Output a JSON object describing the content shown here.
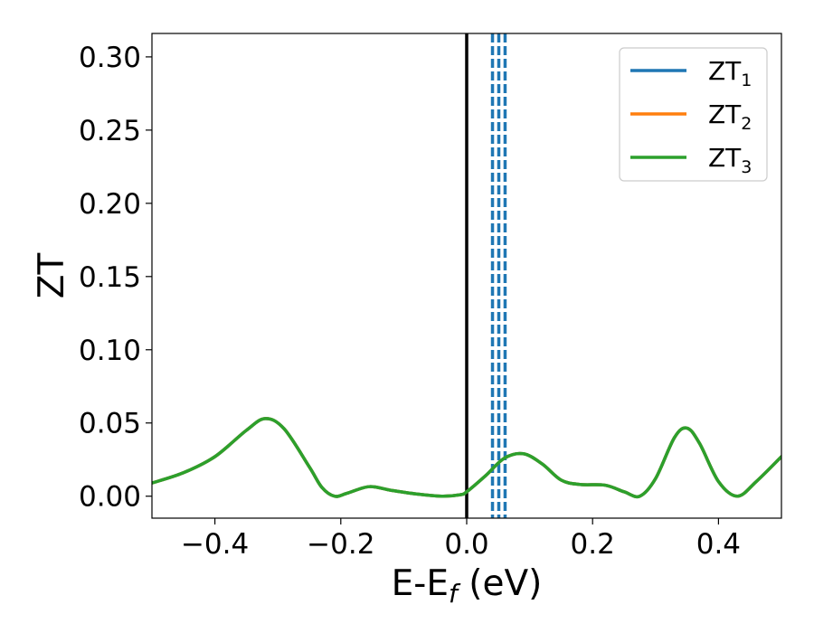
{
  "chart_data": {
    "type": "line",
    "xlabel": "E-E",
    "xlabel_sub": "f",
    "xlabel_unit": " (eV)",
    "ylabel": "ZT",
    "xlim": [
      -0.5,
      0.5
    ],
    "ylim": [
      -0.015,
      0.316
    ],
    "xticks": [
      -0.4,
      -0.2,
      0.0,
      0.2,
      0.4
    ],
    "xtick_labels": [
      "−0.4",
      "−0.2",
      "0.0",
      "0.2",
      "0.4"
    ],
    "yticks": [
      0.0,
      0.05,
      0.1,
      0.15,
      0.2,
      0.25,
      0.3
    ],
    "ytick_labels": [
      "0.00",
      "0.05",
      "0.10",
      "0.15",
      "0.20",
      "0.25",
      "0.30"
    ],
    "grid": false,
    "legend_position": "top-right",
    "series": [
      {
        "name": "ZT",
        "sub": "1",
        "color": "#1f77b4"
      },
      {
        "name": "ZT",
        "sub": "2",
        "color": "#ff7f0e"
      },
      {
        "name": "ZT",
        "sub": "3",
        "color": "#2ca02c"
      }
    ],
    "curve": {
      "x": [
        -0.5,
        -0.45,
        -0.4,
        -0.35,
        -0.32,
        -0.29,
        -0.25,
        -0.23,
        -0.21,
        -0.19,
        -0.155,
        -0.12,
        -0.08,
        -0.04,
        -0.01,
        0.0,
        0.03,
        0.06,
        0.09,
        0.12,
        0.15,
        0.18,
        0.22,
        0.25,
        0.275,
        0.3,
        0.33,
        0.35,
        0.37,
        0.4,
        0.43,
        0.46,
        0.5
      ],
      "y": [
        0.009,
        0.016,
        0.027,
        0.045,
        0.053,
        0.046,
        0.02,
        0.006,
        0.0,
        0.002,
        0.0065,
        0.004,
        0.0015,
        0.0,
        0.001,
        0.003,
        0.014,
        0.026,
        0.029,
        0.022,
        0.011,
        0.008,
        0.0075,
        0.003,
        0.0,
        0.012,
        0.04,
        0.0465,
        0.036,
        0.01,
        0.0,
        0.01,
        0.027
      ]
    },
    "vlines": [
      {
        "x": 0.0,
        "color": "#000000",
        "style": "solid"
      },
      {
        "x": 0.041,
        "color": "#1f77b4",
        "style": "dashed"
      },
      {
        "x": 0.051,
        "color": "#1f77b4",
        "style": "dashed"
      },
      {
        "x": 0.061,
        "color": "#1f77b4",
        "style": "dashed"
      }
    ]
  }
}
